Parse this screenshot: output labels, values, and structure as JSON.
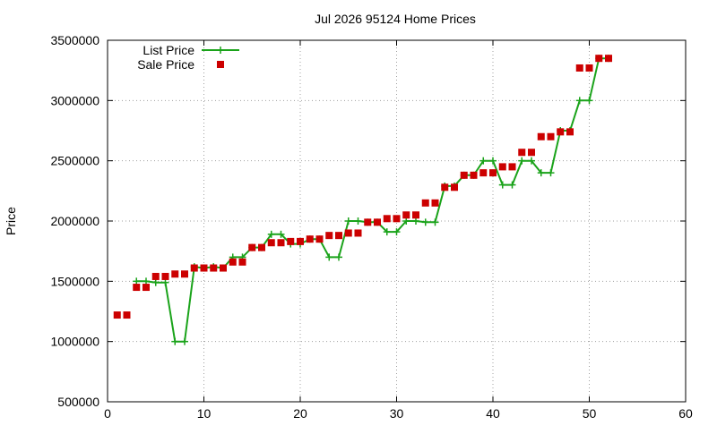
{
  "chart_data": {
    "type": "line",
    "title": "Jul 2026 95124 Home Prices",
    "xlabel": "",
    "ylabel": "Price",
    "xlim": [
      0,
      60
    ],
    "ylim": [
      500000,
      3500000
    ],
    "x_ticks": [
      0,
      10,
      20,
      30,
      40,
      50,
      60
    ],
    "x_tick_labels": [
      "0",
      "10",
      "20",
      "30",
      "40",
      "50",
      "60"
    ],
    "y_ticks": [
      500000,
      1000000,
      1500000,
      2000000,
      2500000,
      3000000,
      3500000
    ],
    "y_tick_labels": [
      "500000",
      "1000000",
      "1500000",
      "2000000",
      "2500000",
      "3000000",
      "3500000"
    ],
    "grid": true,
    "legend_position": "top-left",
    "series": [
      {
        "name": "List Price",
        "style": "line-with-plus-markers",
        "color": "#1aa31a",
        "points": [
          [
            3,
            1500000
          ],
          [
            4,
            1500000
          ],
          [
            5,
            1490000
          ],
          [
            6,
            1490000
          ],
          [
            7,
            1000000
          ],
          [
            8,
            1000000
          ],
          [
            9,
            1620000
          ],
          [
            10,
            1610000
          ],
          [
            11,
            1620000
          ],
          [
            12,
            1610000
          ],
          [
            13,
            1700000
          ],
          [
            14,
            1700000
          ],
          [
            15,
            1780000
          ],
          [
            16,
            1780000
          ],
          [
            17,
            1890000
          ],
          [
            18,
            1890000
          ],
          [
            19,
            1810000
          ],
          [
            20,
            1810000
          ],
          [
            21,
            1850000
          ],
          [
            22,
            1850000
          ],
          [
            23,
            1700000
          ],
          [
            24,
            1700000
          ],
          [
            25,
            2000000
          ],
          [
            26,
            2000000
          ],
          [
            27,
            1990000
          ],
          [
            28,
            1990000
          ],
          [
            29,
            1910000
          ],
          [
            30,
            1910000
          ],
          [
            31,
            2000000
          ],
          [
            32,
            2000000
          ],
          [
            33,
            1990000
          ],
          [
            34,
            1990000
          ],
          [
            35,
            2290000
          ],
          [
            36,
            2290000
          ],
          [
            37,
            2380000
          ],
          [
            38,
            2380000
          ],
          [
            39,
            2500000
          ],
          [
            40,
            2500000
          ],
          [
            41,
            2300000
          ],
          [
            42,
            2300000
          ],
          [
            43,
            2500000
          ],
          [
            44,
            2500000
          ],
          [
            45,
            2400000
          ],
          [
            46,
            2400000
          ],
          [
            47,
            2750000
          ],
          [
            48,
            2750000
          ],
          [
            49,
            3000000
          ],
          [
            50,
            3000000
          ],
          [
            51,
            3350000
          ],
          [
            52,
            3350000
          ]
        ]
      },
      {
        "name": "Sale Price",
        "style": "square-markers",
        "color": "#cc0000",
        "points": [
          [
            1,
            1220000
          ],
          [
            2,
            1220000
          ],
          [
            3,
            1450000
          ],
          [
            4,
            1450000
          ],
          [
            5,
            1540000
          ],
          [
            6,
            1540000
          ],
          [
            7,
            1560000
          ],
          [
            8,
            1560000
          ],
          [
            9,
            1610000
          ],
          [
            10,
            1610000
          ],
          [
            11,
            1610000
          ],
          [
            12,
            1610000
          ],
          [
            13,
            1660000
          ],
          [
            14,
            1660000
          ],
          [
            15,
            1780000
          ],
          [
            16,
            1780000
          ],
          [
            17,
            1820000
          ],
          [
            18,
            1820000
          ],
          [
            19,
            1830000
          ],
          [
            20,
            1830000
          ],
          [
            21,
            1850000
          ],
          [
            22,
            1850000
          ],
          [
            23,
            1880000
          ],
          [
            24,
            1880000
          ],
          [
            25,
            1900000
          ],
          [
            26,
            1900000
          ],
          [
            27,
            1990000
          ],
          [
            28,
            1990000
          ],
          [
            29,
            2020000
          ],
          [
            30,
            2020000
          ],
          [
            31,
            2050000
          ],
          [
            32,
            2050000
          ],
          [
            33,
            2150000
          ],
          [
            34,
            2150000
          ],
          [
            35,
            2280000
          ],
          [
            36,
            2280000
          ],
          [
            37,
            2380000
          ],
          [
            38,
            2380000
          ],
          [
            39,
            2400000
          ],
          [
            40,
            2400000
          ],
          [
            41,
            2450000
          ],
          [
            42,
            2450000
          ],
          [
            43,
            2570000
          ],
          [
            44,
            2570000
          ],
          [
            45,
            2700000
          ],
          [
            46,
            2700000
          ],
          [
            47,
            2740000
          ],
          [
            48,
            2740000
          ],
          [
            49,
            3270000
          ],
          [
            50,
            3270000
          ],
          [
            51,
            3350000
          ],
          [
            52,
            3350000
          ]
        ]
      }
    ]
  }
}
